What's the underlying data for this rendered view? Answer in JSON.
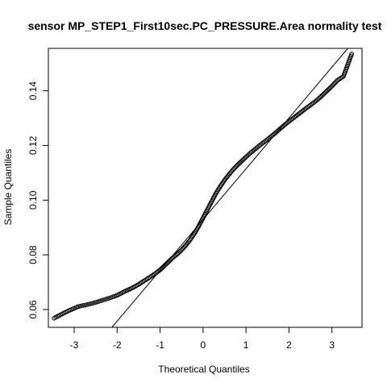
{
  "chart_data": {
    "type": "scatter",
    "subtype": "normal-qq-plot",
    "title": "sensor MP_STEP1_First10sec.PC_PRESSURE.Area normality test",
    "xlabel": "Theoretical Quantiles",
    "ylabel": "Sample Quantiles",
    "xlim": [
      -3.6,
      3.7
    ],
    "ylim": [
      0.0535,
      0.1555
    ],
    "x_ticks": [
      -3,
      -2,
      -1,
      0,
      1,
      2,
      3
    ],
    "x_tick_labels": [
      "-3",
      "-2",
      "-1",
      "0",
      "1",
      "2",
      "3"
    ],
    "y_ticks": [
      0.06,
      0.08,
      0.1,
      0.12,
      0.14
    ],
    "y_tick_labels": [
      "0.06",
      "0.08",
      "0.10",
      "0.12",
      "0.14"
    ],
    "grid": false,
    "legend": "none",
    "point_marker": "open-circle",
    "qq_line": {
      "x": [
        -2.12,
        3.37
      ],
      "y": [
        0.0535,
        0.1555
      ]
    },
    "series": [
      {
        "points": [
          [
            -3.47,
            0.0568
          ],
          [
            -3.18,
            0.0592
          ],
          [
            -3.02,
            0.0603
          ],
          [
            -2.92,
            0.061
          ],
          [
            -2.82,
            0.0614
          ],
          [
            -2.72,
            0.0617
          ],
          [
            -2.62,
            0.0621
          ],
          [
            -2.52,
            0.0625
          ],
          [
            -2.42,
            0.063
          ],
          [
            -2.32,
            0.0635
          ],
          [
            -2.22,
            0.064
          ],
          [
            -2.12,
            0.0645
          ],
          [
            -2.0,
            0.0652
          ],
          [
            -1.9,
            0.066
          ],
          [
            -1.8,
            0.0668
          ],
          [
            -1.7,
            0.0675
          ],
          [
            -1.6,
            0.0683
          ],
          [
            -1.5,
            0.0692
          ],
          [
            -1.4,
            0.0702
          ],
          [
            -1.3,
            0.0712
          ],
          [
            -1.2,
            0.0722
          ],
          [
            -1.1,
            0.0733
          ],
          [
            -1.0,
            0.0745
          ],
          [
            -0.9,
            0.076
          ],
          [
            -0.8,
            0.0775
          ],
          [
            -0.7,
            0.079
          ],
          [
            -0.6,
            0.0803
          ],
          [
            -0.5,
            0.0818
          ],
          [
            -0.4,
            0.0835
          ],
          [
            -0.3,
            0.0855
          ],
          [
            -0.2,
            0.0878
          ],
          [
            -0.1,
            0.0905
          ],
          [
            0.0,
            0.0935
          ],
          [
            0.1,
            0.0965
          ],
          [
            0.2,
            0.0995
          ],
          [
            0.3,
            0.1025
          ],
          [
            0.4,
            0.105
          ],
          [
            0.5,
            0.1073
          ],
          [
            0.6,
            0.1093
          ],
          [
            0.7,
            0.1112
          ],
          [
            0.8,
            0.1128
          ],
          [
            0.9,
            0.1143
          ],
          [
            1.0,
            0.1158
          ],
          [
            1.1,
            0.1172
          ],
          [
            1.2,
            0.1185
          ],
          [
            1.3,
            0.1198
          ],
          [
            1.4,
            0.121
          ],
          [
            1.5,
            0.1222
          ],
          [
            1.6,
            0.1235
          ],
          [
            1.7,
            0.1248
          ],
          [
            1.8,
            0.1262
          ],
          [
            1.9,
            0.1275
          ],
          [
            2.0,
            0.1288
          ],
          [
            2.1,
            0.13
          ],
          [
            2.2,
            0.1312
          ],
          [
            2.3,
            0.1324
          ],
          [
            2.4,
            0.1336
          ],
          [
            2.52,
            0.135
          ],
          [
            2.62,
            0.1362
          ],
          [
            2.72,
            0.1375
          ],
          [
            2.82,
            0.139
          ],
          [
            2.92,
            0.1405
          ],
          [
            3.02,
            0.142
          ],
          [
            3.12,
            0.1437
          ],
          [
            3.27,
            0.1453
          ],
          [
            3.46,
            0.1535
          ]
        ]
      }
    ]
  }
}
